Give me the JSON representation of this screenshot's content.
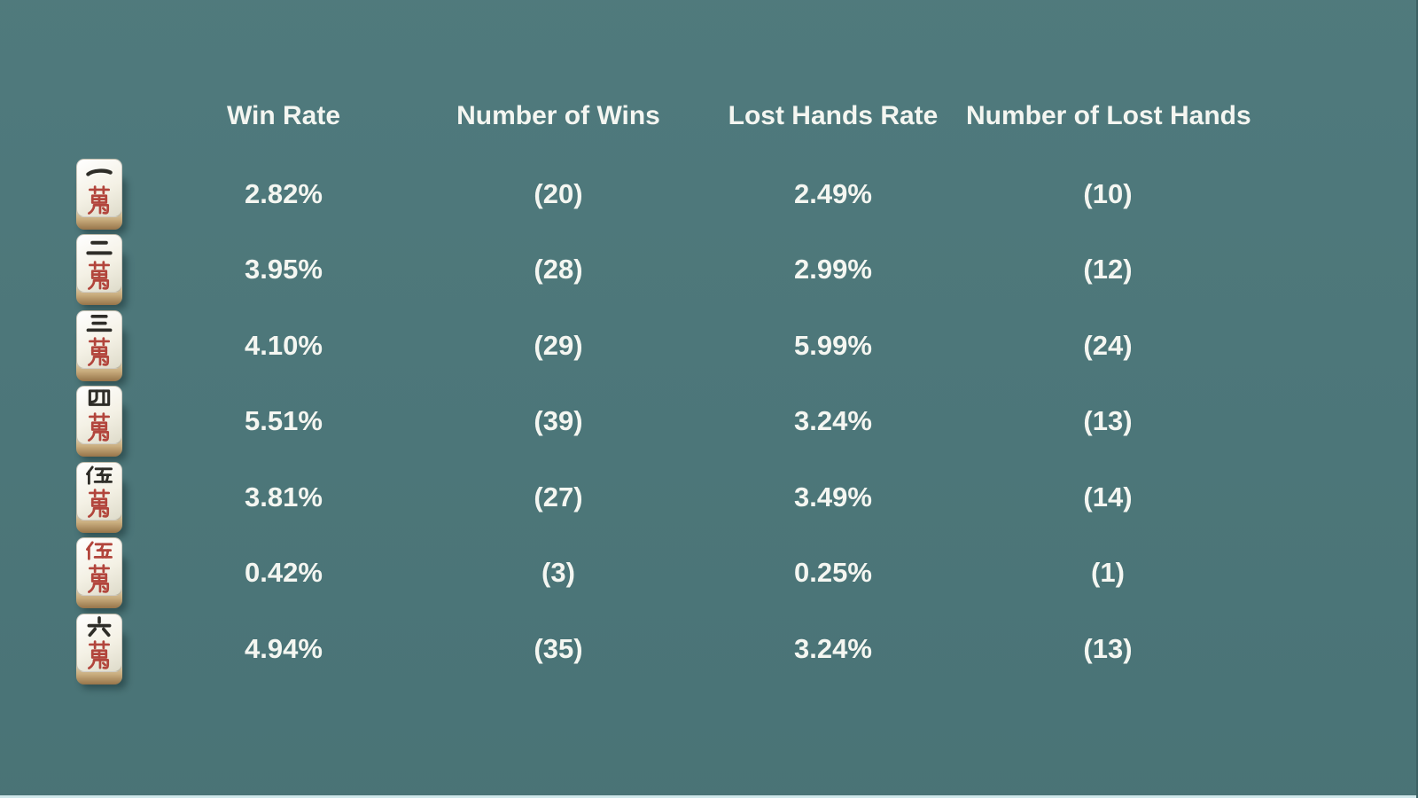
{
  "page": {
    "background_color": "#4c777a",
    "text_color": "#f4f6f1"
  },
  "colors": {
    "glyph_black": "#2e2d28",
    "glyph_red": "#b2453c",
    "tile_face": "#f4f1e5",
    "tile_side": "#c9ad7e"
  },
  "table": {
    "headers": [
      "Win Rate",
      "Number of Wins",
      "Lost Hands Rate",
      "Number of Lost Hands"
    ],
    "rows": [
      {
        "tile": {
          "name": "1-man",
          "label": "一萬",
          "number": 1,
          "red": false
        },
        "win_rate": "2.82%",
        "num_wins": "(20)",
        "lost_rate": "2.49%",
        "num_lost": "(10)"
      },
      {
        "tile": {
          "name": "2-man",
          "label": "二萬",
          "number": 2,
          "red": false
        },
        "win_rate": "3.95%",
        "num_wins": "(28)",
        "lost_rate": "2.99%",
        "num_lost": "(12)"
      },
      {
        "tile": {
          "name": "3-man",
          "label": "三萬",
          "number": 3,
          "red": false
        },
        "win_rate": "4.10%",
        "num_wins": "(29)",
        "lost_rate": "5.99%",
        "num_lost": "(24)"
      },
      {
        "tile": {
          "name": "4-man",
          "label": "四萬",
          "number": 4,
          "red": false
        },
        "win_rate": "5.51%",
        "num_wins": "(39)",
        "lost_rate": "3.24%",
        "num_lost": "(13)"
      },
      {
        "tile": {
          "name": "5-man",
          "label": "伍萬",
          "number": 5,
          "red": false
        },
        "win_rate": "3.81%",
        "num_wins": "(27)",
        "lost_rate": "3.49%",
        "num_lost": "(14)"
      },
      {
        "tile": {
          "name": "red-5-man",
          "label": "伍萬",
          "number": 5,
          "red": true
        },
        "win_rate": "0.42%",
        "num_wins": "(3)",
        "lost_rate": "0.25%",
        "num_lost": "(1)"
      },
      {
        "tile": {
          "name": "6-man",
          "label": "六萬",
          "number": 6,
          "red": false
        },
        "win_rate": "4.94%",
        "num_wins": "(35)",
        "lost_rate": "3.24%",
        "num_lost": "(13)"
      }
    ]
  }
}
